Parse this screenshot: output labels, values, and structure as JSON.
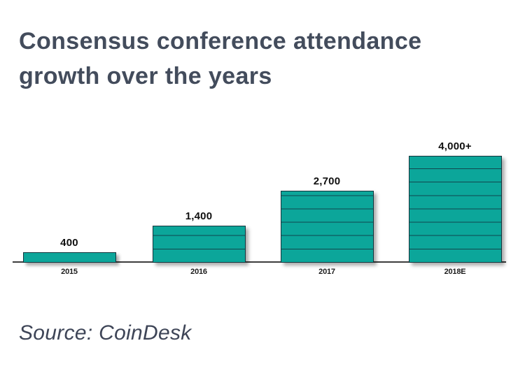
{
  "title": "Consensus conference attendance growth over the years",
  "source": "Source: CoinDesk",
  "chart_data": {
    "type": "bar",
    "categories": [
      "2015",
      "2016",
      "2017",
      "2018E"
    ],
    "values": [
      400,
      1400,
      2700,
      4000
    ],
    "value_labels": [
      "400",
      "1,400",
      "2,700",
      "4,000+"
    ],
    "title": "Consensus conference attendance growth over the years",
    "xlabel": "",
    "ylabel": "",
    "ylim": [
      0,
      4000
    ],
    "segment_unit": 500,
    "grid": false,
    "legend_position": "none",
    "annotation": "Source: CoinDesk",
    "bar_color": "#0ca69a",
    "bar_outline_color": "#15353d",
    "segment_line_color": "#11464d",
    "axis_line_color": "#3d3d3d",
    "value_label_color": "#101010",
    "tick_label_color": "#1c1c1c",
    "title_color": "#434c5c",
    "source_color": "#3e4557"
  }
}
